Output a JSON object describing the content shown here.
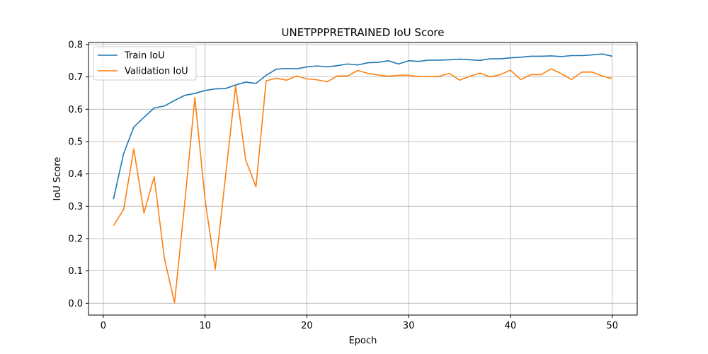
{
  "chart_data": {
    "type": "line",
    "title": "UNETPPPRETRAINED IoU Score",
    "xlabel": "Epoch",
    "ylabel": "IoU Score",
    "xlim": [
      -1.45,
      52.45
    ],
    "ylim": [
      -0.0365,
      0.8065
    ],
    "xticks": [
      0,
      10,
      20,
      30,
      40,
      50
    ],
    "yticks": [
      0.0,
      0.1,
      0.2,
      0.3,
      0.4,
      0.5,
      0.6,
      0.7,
      0.8
    ],
    "grid": true,
    "legend": "upper-left",
    "x": [
      1,
      2,
      3,
      4,
      5,
      6,
      7,
      8,
      9,
      10,
      11,
      12,
      13,
      14,
      15,
      16,
      17,
      18,
      19,
      20,
      21,
      22,
      23,
      24,
      25,
      26,
      27,
      28,
      29,
      30,
      31,
      32,
      33,
      34,
      35,
      36,
      37,
      38,
      39,
      40,
      41,
      42,
      43,
      44,
      45,
      46,
      47,
      48,
      49,
      50
    ],
    "series": [
      {
        "name": "Train IoU",
        "color": "#1f77b4",
        "values": [
          0.322,
          0.463,
          0.545,
          0.575,
          0.604,
          0.61,
          0.627,
          0.643,
          0.649,
          0.658,
          0.663,
          0.664,
          0.675,
          0.684,
          0.68,
          0.705,
          0.724,
          0.726,
          0.725,
          0.731,
          0.734,
          0.731,
          0.735,
          0.74,
          0.737,
          0.744,
          0.745,
          0.75,
          0.74,
          0.75,
          0.748,
          0.752,
          0.752,
          0.753,
          0.755,
          0.753,
          0.751,
          0.756,
          0.756,
          0.759,
          0.761,
          0.764,
          0.764,
          0.765,
          0.763,
          0.766,
          0.766,
          0.768,
          0.771,
          0.764
        ]
      },
      {
        "name": "Validation IoU",
        "color": "#ff7f0e",
        "values": [
          0.24,
          0.29,
          0.477,
          0.279,
          0.391,
          0.14,
          0.001,
          0.31,
          0.636,
          0.32,
          0.105,
          0.39,
          0.672,
          0.442,
          0.36,
          0.688,
          0.696,
          0.69,
          0.703,
          0.694,
          0.691,
          0.685,
          0.703,
          0.703,
          0.72,
          0.711,
          0.706,
          0.702,
          0.705,
          0.705,
          0.701,
          0.701,
          0.702,
          0.711,
          0.69,
          0.702,
          0.712,
          0.7,
          0.707,
          0.721,
          0.692,
          0.707,
          0.707,
          0.725,
          0.71,
          0.692,
          0.715,
          0.715,
          0.703,
          0.695
        ]
      }
    ]
  }
}
